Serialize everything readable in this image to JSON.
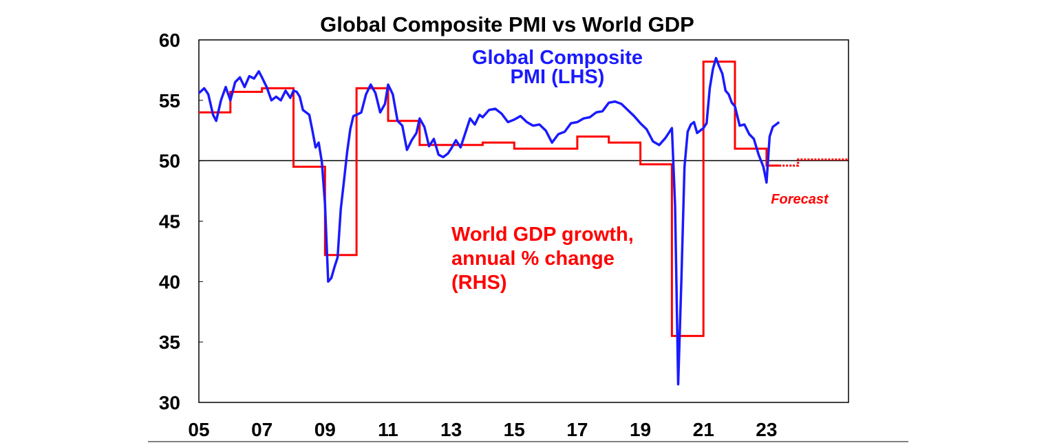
{
  "chart_data": {
    "type": "line",
    "title": "Global Composite PMI vs World GDP",
    "y_ticks": [
      "60",
      "55",
      "50",
      "45",
      "40",
      "35",
      "30"
    ],
    "ylim": [
      30,
      60
    ],
    "x_ticks": [
      "05",
      "07",
      "09",
      "11",
      "13",
      "15",
      "17",
      "19",
      "21",
      "23"
    ],
    "xlim": [
      2005,
      2025.6
    ],
    "reference_line": 50,
    "grid": false,
    "annotations": {
      "pmi_label_line1": "Global Composite",
      "pmi_label_line2": "PMI (LHS)",
      "gdp_label_line1": "World GDP growth,",
      "gdp_label_line2": "annual % change",
      "gdp_label_line3": "(RHS)",
      "forecast": "Forecast"
    },
    "colors": {
      "pmi": "#1a1aff",
      "gdp": "#ff0000",
      "axis": "#000000"
    },
    "series": [
      {
        "key": "pmi",
        "x": [
          2005.0,
          2005.17,
          2005.3,
          2005.45,
          2005.55,
          2005.7,
          2005.85,
          2006.0,
          2006.15,
          2006.3,
          2006.45,
          2006.6,
          2006.75,
          2006.9,
          2007.0,
          2007.15,
          2007.3,
          2007.45,
          2007.6,
          2007.75,
          2007.9,
          2008.0,
          2008.1,
          2008.2,
          2008.3,
          2008.4,
          2008.5,
          2008.6,
          2008.7,
          2008.8,
          2008.9,
          2009.0,
          2009.1,
          2009.2,
          2009.3,
          2009.4,
          2009.5,
          2009.6,
          2009.7,
          2009.8,
          2009.9,
          2010.0,
          2010.15,
          2010.3,
          2010.45,
          2010.6,
          2010.75,
          2010.9,
          2011.0,
          2011.15,
          2011.3,
          2011.45,
          2011.6,
          2011.75,
          2011.9,
          2012.0,
          2012.15,
          2012.3,
          2012.45,
          2012.6,
          2012.75,
          2012.9,
          2013.0,
          2013.15,
          2013.3,
          2013.45,
          2013.6,
          2013.75,
          2013.9,
          2014.0,
          2014.2,
          2014.4,
          2014.6,
          2014.8,
          2015.0,
          2015.2,
          2015.4,
          2015.6,
          2015.8,
          2016.0,
          2016.2,
          2016.4,
          2016.6,
          2016.8,
          2017.0,
          2017.2,
          2017.4,
          2017.6,
          2017.8,
          2018.0,
          2018.2,
          2018.4,
          2018.6,
          2018.8,
          2019.0,
          2019.2,
          2019.4,
          2019.6,
          2019.8,
          2020.0,
          2020.1,
          2020.2,
          2020.3,
          2020.4,
          2020.5,
          2020.6,
          2020.7,
          2020.8,
          2020.9,
          2021.0,
          2021.1,
          2021.2,
          2021.3,
          2021.4,
          2021.5,
          2021.6,
          2021.7,
          2021.8,
          2021.9,
          2022.0,
          2022.15,
          2022.3,
          2022.45,
          2022.6,
          2022.75,
          2022.9,
          2023.0,
          2023.1,
          2023.2,
          2023.3,
          2023.4
        ],
        "values": [
          55.6,
          56.0,
          55.5,
          53.8,
          53.3,
          55.0,
          56.1,
          55.0,
          56.5,
          56.9,
          56.1,
          57.0,
          56.8,
          57.4,
          56.9,
          56.1,
          55.0,
          55.3,
          55.0,
          55.8,
          55.2,
          55.8,
          55.7,
          55.3,
          54.2,
          54.0,
          53.8,
          52.5,
          51.1,
          51.5,
          49.9,
          46.4,
          40.0,
          40.3,
          41.2,
          42.0,
          46.0,
          48.3,
          50.7,
          52.6,
          53.7,
          53.8,
          54.0,
          55.5,
          56.3,
          55.6,
          54.0,
          54.7,
          56.3,
          55.5,
          53.3,
          52.9,
          50.9,
          51.7,
          52.3,
          53.5,
          52.8,
          51.2,
          51.8,
          50.5,
          50.3,
          50.6,
          51.0,
          51.7,
          51.1,
          52.3,
          53.5,
          53.0,
          53.8,
          53.6,
          54.2,
          54.3,
          53.9,
          53.2,
          53.4,
          53.7,
          53.2,
          52.9,
          53.0,
          52.5,
          51.5,
          52.2,
          52.4,
          53.1,
          53.2,
          53.5,
          53.6,
          54.0,
          54.1,
          54.8,
          54.9,
          54.7,
          54.2,
          53.7,
          53.1,
          52.6,
          51.6,
          51.3,
          51.9,
          52.7,
          46.3,
          31.5,
          40.0,
          49.5,
          52.4,
          53.0,
          53.2,
          52.3,
          52.5,
          52.7,
          53.1,
          56.0,
          57.6,
          58.5,
          57.8,
          57.2,
          55.8,
          55.5,
          54.8,
          54.5,
          52.9,
          53.0,
          52.2,
          51.8,
          50.5,
          49.5,
          48.2,
          52.0,
          52.8,
          53.0,
          53.2
        ]
      },
      {
        "key": "gdp",
        "step_points": [
          [
            2005.0,
            54.0
          ],
          [
            2006.0,
            54.0
          ],
          [
            2006.0,
            55.7
          ],
          [
            2007.0,
            55.7
          ],
          [
            2007.0,
            56.0
          ],
          [
            2008.0,
            56.0
          ],
          [
            2008.0,
            49.5
          ],
          [
            2009.0,
            49.5
          ],
          [
            2009.0,
            42.2
          ],
          [
            2010.0,
            42.2
          ],
          [
            2010.0,
            56.0
          ],
          [
            2011.0,
            56.0
          ],
          [
            2011.0,
            53.3
          ],
          [
            2012.0,
            53.3
          ],
          [
            2012.0,
            51.3
          ],
          [
            2014.0,
            51.3
          ],
          [
            2014.0,
            51.5
          ],
          [
            2015.0,
            51.5
          ],
          [
            2015.0,
            51.0
          ],
          [
            2017.0,
            51.0
          ],
          [
            2017.0,
            52.0
          ],
          [
            2018.0,
            52.0
          ],
          [
            2018.0,
            51.5
          ],
          [
            2019.0,
            51.5
          ],
          [
            2019.0,
            49.7
          ],
          [
            2020.0,
            49.7
          ],
          [
            2020.0,
            35.5
          ],
          [
            2021.0,
            35.5
          ],
          [
            2021.0,
            58.2
          ],
          [
            2022.0,
            58.2
          ],
          [
            2022.0,
            51.0
          ],
          [
            2023.0,
            51.0
          ],
          [
            2023.0,
            49.6
          ],
          [
            2023.4,
            49.6
          ]
        ],
        "forecast_points": [
          [
            2023.4,
            49.6
          ],
          [
            2024.0,
            49.6
          ],
          [
            2024.0,
            50.1
          ],
          [
            2025.6,
            50.1
          ]
        ]
      }
    ]
  }
}
